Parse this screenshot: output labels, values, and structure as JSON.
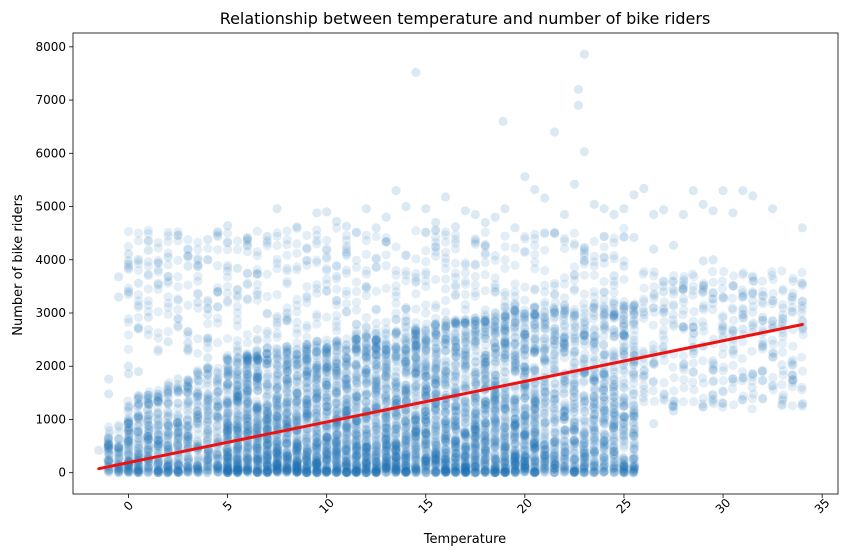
{
  "chart_data": {
    "type": "scatter",
    "title": "Relationship between temperature and number of bike riders",
    "xlabel": "Temperature",
    "ylabel": "Number of bike riders",
    "xlim": [
      -2.8,
      35.8
    ],
    "ylim": [
      -400,
      8260
    ],
    "xticks": [
      0,
      5,
      10,
      15,
      20,
      25,
      30,
      35
    ],
    "yticks": [
      0,
      1000,
      2000,
      3000,
      4000,
      5000,
      6000,
      7000,
      8000
    ],
    "x_tick_rotation": 45,
    "grid": false,
    "point_color": "#1f77b4",
    "point_alpha": 0.12,
    "regression": {
      "color": "#ee1111",
      "slope": 76.3,
      "intercept": 190,
      "x_range": [
        -1.5,
        34.0
      ]
    },
    "series": [
      {
        "points": [
          [
            -1.5,
            420
          ],
          [
            -1,
            40
          ],
          [
            -1,
            530
          ],
          [
            -1,
            1480
          ],
          [
            -1,
            1760
          ],
          [
            -0.5,
            60
          ],
          [
            -0.5,
            3680
          ],
          [
            -0.5,
            3300
          ],
          [
            0,
            40
          ],
          [
            0,
            220
          ],
          [
            0,
            520
          ],
          [
            0,
            1860
          ],
          [
            0,
            2000
          ],
          [
            0,
            3980
          ],
          [
            0,
            4110
          ],
          [
            0.5,
            150
          ],
          [
            0.5,
            1900
          ],
          [
            0.5,
            3560
          ],
          [
            1,
            260
          ],
          [
            1,
            620
          ],
          [
            1,
            2920
          ],
          [
            1,
            4180
          ],
          [
            1.5,
            520
          ],
          [
            1.5,
            3530
          ],
          [
            2,
            380
          ],
          [
            2,
            880
          ],
          [
            2,
            2460
          ],
          [
            2,
            4050
          ],
          [
            2.5,
            1760
          ],
          [
            3,
            3880
          ],
          [
            3,
            680
          ],
          [
            3,
            2440
          ],
          [
            3.5,
            3200
          ],
          [
            4,
            4380
          ],
          [
            4,
            2160
          ],
          [
            4.5,
            3400
          ],
          [
            5,
            4640
          ],
          [
            5,
            1300
          ],
          [
            5.5,
            3840
          ],
          [
            6,
            4400
          ],
          [
            6.5,
            3340
          ],
          [
            7,
            4440
          ],
          [
            7.5,
            4960
          ],
          [
            8,
            3000
          ],
          [
            8.5,
            4620
          ],
          [
            9,
            4200
          ],
          [
            9.5,
            4880
          ],
          [
            10,
            4900
          ],
          [
            10.5,
            4720
          ],
          [
            11,
            4630
          ],
          [
            12,
            4960
          ],
          [
            12.5,
            4600
          ],
          [
            13,
            4800
          ],
          [
            13.5,
            5300
          ],
          [
            14,
            5000
          ],
          [
            14.5,
            7520
          ],
          [
            15,
            4960
          ],
          [
            15.5,
            4700
          ],
          [
            16,
            5180
          ],
          [
            16.5,
            4620
          ],
          [
            17,
            4920
          ],
          [
            17.5,
            4850
          ],
          [
            18,
            4700
          ],
          [
            18.5,
            4800
          ],
          [
            18.9,
            6600
          ],
          [
            19,
            4960
          ],
          [
            19.5,
            4600
          ],
          [
            20,
            5560
          ],
          [
            20.5,
            5320
          ],
          [
            21,
            5160
          ],
          [
            21.5,
            6400
          ],
          [
            22,
            4850
          ],
          [
            22.5,
            5420
          ],
          [
            22.7,
            6900
          ],
          [
            22.7,
            7200
          ],
          [
            23,
            7860
          ],
          [
            23,
            6030
          ],
          [
            23.5,
            5040
          ],
          [
            24,
            4960
          ],
          [
            24.5,
            4850
          ],
          [
            25,
            4960
          ],
          [
            25.5,
            5220
          ],
          [
            26,
            5340
          ],
          [
            26.5,
            4850
          ],
          [
            27,
            4940
          ],
          [
            27.5,
            4270
          ],
          [
            28,
            4850
          ],
          [
            28.5,
            5300
          ],
          [
            29,
            5040
          ],
          [
            29.5,
            4920
          ],
          [
            30,
            5300
          ],
          [
            30.5,
            4880
          ],
          [
            31,
            5300
          ],
          [
            31.5,
            5200
          ],
          [
            32,
            2920
          ],
          [
            32.5,
            4960
          ],
          [
            33,
            1360
          ],
          [
            33.5,
            1840
          ],
          [
            34,
            4600
          ],
          [
            30,
            1300
          ],
          [
            30.5,
            1760
          ],
          [
            31,
            1780
          ],
          [
            31.5,
            1860
          ],
          [
            29.5,
            1380
          ],
          [
            28.5,
            2240
          ],
          [
            27.5,
            1160
          ],
          [
            26.5,
            920
          ],
          [
            25.5,
            1860
          ],
          [
            24.5,
            1260
          ],
          [
            23.5,
            660
          ],
          [
            24,
            120
          ],
          [
            23,
            300
          ],
          [
            22.5,
            40
          ],
          [
            21.5,
            160
          ],
          [
            21,
            180
          ],
          [
            20.5,
            220
          ],
          [
            20,
            100
          ],
          [
            19.5,
            60
          ],
          [
            26,
            3020
          ],
          [
            27,
            3400
          ],
          [
            28,
            2740
          ],
          [
            29,
            3980
          ],
          [
            30,
            2740
          ],
          [
            31,
            2700
          ],
          [
            32,
            2860
          ],
          [
            33,
            2820
          ],
          [
            25,
            3880
          ],
          [
            24.5,
            3700
          ],
          [
            26.5,
            4200
          ],
          [
            25.5,
            4420
          ],
          [
            28,
            3520
          ],
          [
            29.5,
            4000
          ]
        ]
      }
    ]
  }
}
